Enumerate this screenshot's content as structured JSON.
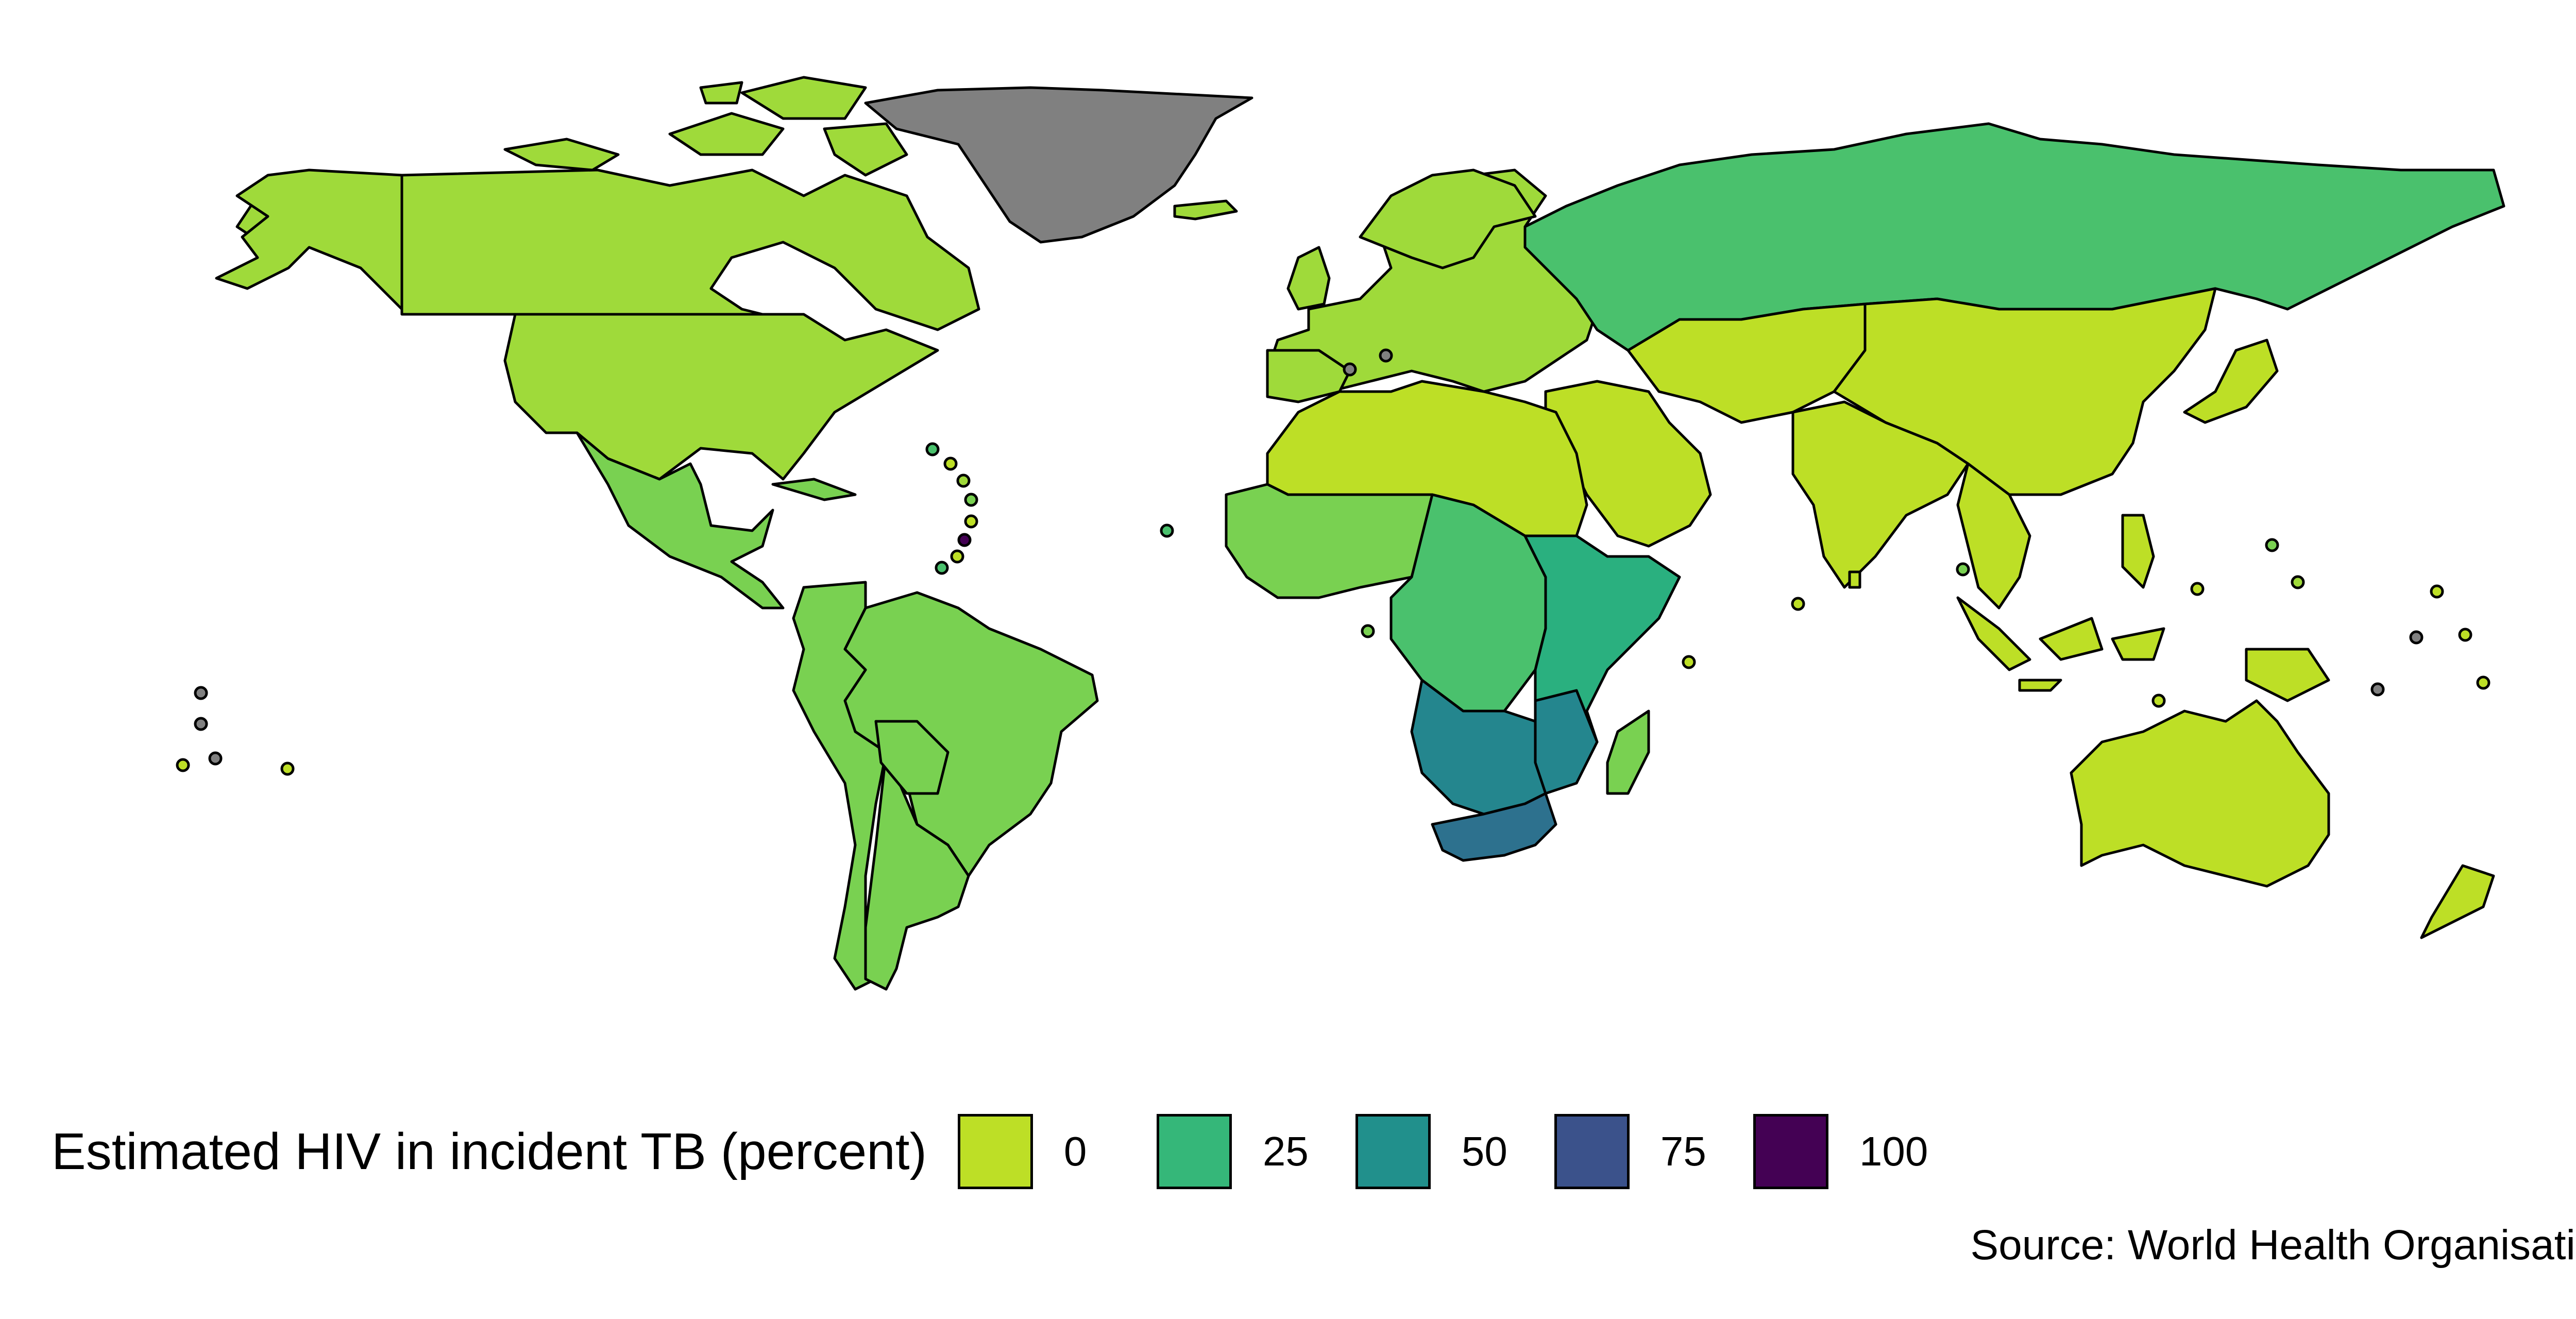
{
  "map": {
    "type": "choropleth",
    "colors": {
      "v0": "#bddf26",
      "v10": "#9fda3a",
      "v15": "#79d151",
      "v20": "#4ac16d",
      "v30": "#2ab07f",
      "v45": "#1e9b8a",
      "v55": "#24868e",
      "v65": "#2d718e",
      "v100": "#440154",
      "no_data": "#808080"
    },
    "regions": [
      {
        "region": "North America",
        "fill": "v10"
      },
      {
        "region": "Greenland",
        "fill": "no_data"
      },
      {
        "region": "Mexico / Central America",
        "fill": "v15"
      },
      {
        "region": "South America",
        "fill": "v15"
      },
      {
        "region": "Europe",
        "fill": "v10"
      },
      {
        "region": "Russia",
        "fill": "v20"
      },
      {
        "region": "China / Asia",
        "fill": "v0"
      },
      {
        "region": "North Africa",
        "fill": "v0"
      },
      {
        "region": "West Africa",
        "fill": "v15"
      },
      {
        "region": "Central Africa",
        "fill": "v20"
      },
      {
        "region": "East Africa",
        "fill": "v30"
      },
      {
        "region": "Southern Africa",
        "fill": "v55"
      },
      {
        "region": "South Africa",
        "fill": "v65"
      },
      {
        "region": "Australia",
        "fill": "v0"
      }
    ]
  },
  "legend": {
    "title": "Estimated HIV in incident TB (percent)",
    "items": [
      {
        "label": "0",
        "color": "#bddf26"
      },
      {
        "label": "25",
        "color": "#35b779"
      },
      {
        "label": "50",
        "color": "#21908c"
      },
      {
        "label": "75",
        "color": "#3b528b"
      },
      {
        "label": "100",
        "color": "#440154"
      }
    ]
  },
  "caption": "Source: World Health Organisation"
}
